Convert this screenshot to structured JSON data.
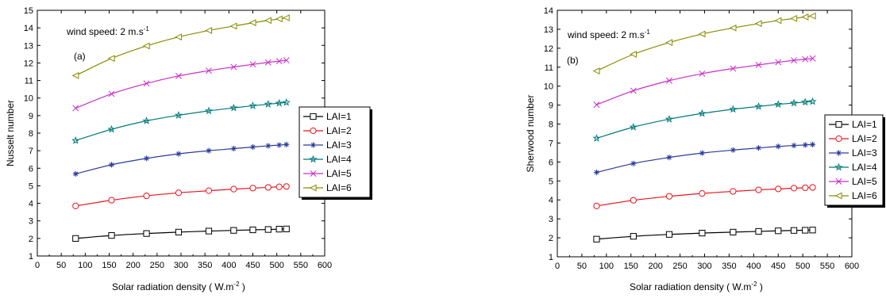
{
  "chart_data": [
    {
      "type": "line",
      "panel_label": "(a)",
      "annotation_text": "wind speed: 2 m.s",
      "annotation_sup": "-1",
      "xlabel": "Solar radiation density",
      "xlabel_unit": "( W.m",
      "xlabel_sup": "-2",
      "xlabel_close": ")",
      "ylabel": "Nusselt number",
      "xlim": [
        0,
        600
      ],
      "ylim": [
        1,
        15
      ],
      "xticks": [
        0,
        50,
        100,
        150,
        200,
        250,
        300,
        350,
        400,
        450,
        500,
        550,
        600
      ],
      "yticks": [
        1,
        2,
        3,
        4,
        5,
        6,
        7,
        8,
        9,
        10,
        11,
        12,
        13,
        14,
        15
      ],
      "legend_position": "right",
      "x": [
        80,
        155,
        228,
        295,
        358,
        410,
        450,
        482,
        505,
        520
      ],
      "series": [
        {
          "name": "LAI=1",
          "color": "#000000",
          "marker": "square",
          "values": [
            2.0,
            2.17,
            2.28,
            2.36,
            2.42,
            2.46,
            2.49,
            2.51,
            2.53,
            2.54
          ]
        },
        {
          "name": "LAI=2",
          "color": "#e8141c",
          "marker": "circle",
          "values": [
            3.85,
            4.18,
            4.43,
            4.6,
            4.72,
            4.81,
            4.87,
            4.91,
            4.94,
            4.96
          ]
        },
        {
          "name": "LAI=3",
          "color": "#2b3a9b",
          "marker": "asterisk",
          "values": [
            5.68,
            6.2,
            6.56,
            6.82,
            7.0,
            7.12,
            7.21,
            7.28,
            7.32,
            7.35
          ]
        },
        {
          "name": "LAI=4",
          "color": "#007a7a",
          "marker": "star",
          "values": [
            7.58,
            8.22,
            8.7,
            9.02,
            9.27,
            9.44,
            9.56,
            9.65,
            9.71,
            9.75
          ]
        },
        {
          "name": "LAI=5",
          "color": "#c92ec9",
          "marker": "x",
          "values": [
            9.42,
            10.24,
            10.83,
            11.26,
            11.56,
            11.77,
            11.92,
            12.03,
            12.1,
            12.15
          ]
        },
        {
          "name": "LAI=6",
          "color": "#8a8a00",
          "marker": "triangle-left",
          "values": [
            11.28,
            12.26,
            12.97,
            13.48,
            13.85,
            14.1,
            14.29,
            14.42,
            14.51,
            14.57
          ]
        }
      ]
    },
    {
      "type": "line",
      "panel_label": "(b)",
      "annotation_text": "wind speed: 2 m.s",
      "annotation_sup": "-1",
      "xlabel": "Solar radiation density",
      "xlabel_unit": "( W.m",
      "xlabel_sup": "-2",
      "xlabel_close": ")",
      "ylabel": "Sherwood number",
      "xlim": [
        0,
        600
      ],
      "ylim": [
        1,
        14
      ],
      "xticks": [
        0,
        50,
        100,
        150,
        200,
        250,
        300,
        350,
        400,
        450,
        500,
        550,
        600
      ],
      "yticks": [
        1,
        2,
        3,
        4,
        5,
        6,
        7,
        8,
        9,
        10,
        11,
        12,
        13,
        14
      ],
      "legend_position": "right",
      "x": [
        80,
        155,
        228,
        295,
        358,
        410,
        450,
        482,
        505,
        520
      ],
      "series": [
        {
          "name": "LAI=1",
          "color": "#000000",
          "marker": "square",
          "values": [
            1.93,
            2.08,
            2.18,
            2.25,
            2.3,
            2.34,
            2.37,
            2.39,
            2.4,
            2.41
          ]
        },
        {
          "name": "LAI=2",
          "color": "#e8141c",
          "marker": "circle",
          "values": [
            3.68,
            3.98,
            4.19,
            4.34,
            4.45,
            4.53,
            4.58,
            4.62,
            4.64,
            4.66
          ]
        },
        {
          "name": "LAI=3",
          "color": "#2b3a9b",
          "marker": "asterisk",
          "values": [
            5.45,
            5.92,
            6.24,
            6.47,
            6.63,
            6.74,
            6.82,
            6.87,
            6.9,
            6.92
          ]
        },
        {
          "name": "LAI=4",
          "color": "#007a7a",
          "marker": "star",
          "values": [
            7.25,
            7.84,
            8.26,
            8.56,
            8.78,
            8.93,
            9.04,
            9.11,
            9.16,
            9.19
          ]
        },
        {
          "name": "LAI=5",
          "color": "#c92ec9",
          "marker": "x",
          "values": [
            9.02,
            9.76,
            10.29,
            10.66,
            10.93,
            11.12,
            11.26,
            11.36,
            11.42,
            11.46
          ]
        },
        {
          "name": "LAI=6",
          "color": "#8a8a00",
          "marker": "triangle-left",
          "values": [
            10.8,
            11.68,
            12.3,
            12.75,
            13.07,
            13.3,
            13.46,
            13.57,
            13.65,
            13.7
          ]
        }
      ]
    }
  ]
}
